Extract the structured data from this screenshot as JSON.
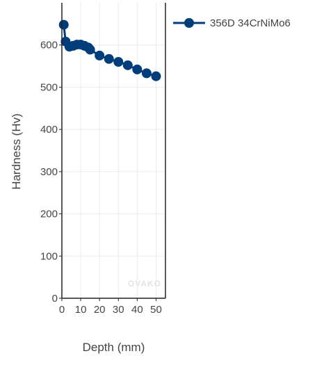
{
  "chart_data": {
    "type": "line",
    "title": "",
    "xlabel": "Depth (mm)",
    "ylabel": "Hardness (Hv)",
    "xlim": [
      0,
      55
    ],
    "ylim": [
      0,
      700
    ],
    "x_ticks": [
      0,
      10,
      20,
      30,
      40,
      50
    ],
    "y_ticks": [
      0,
      100,
      200,
      300,
      400,
      500,
      600
    ],
    "grid": true,
    "legend_position": "top-right",
    "watermark": "OVAKO",
    "series": [
      {
        "name": "356D 34CrNiMo6",
        "color": "#003d7a",
        "marker": "circle",
        "x": [
          1,
          2,
          4,
          6,
          8,
          10,
          12,
          14,
          15,
          20,
          25,
          30,
          35,
          40,
          45,
          50
        ],
        "y": [
          648,
          608,
          596,
          598,
          601,
          601,
          598,
          594,
          589,
          575,
          567,
          560,
          552,
          542,
          533,
          526
        ]
      }
    ]
  }
}
